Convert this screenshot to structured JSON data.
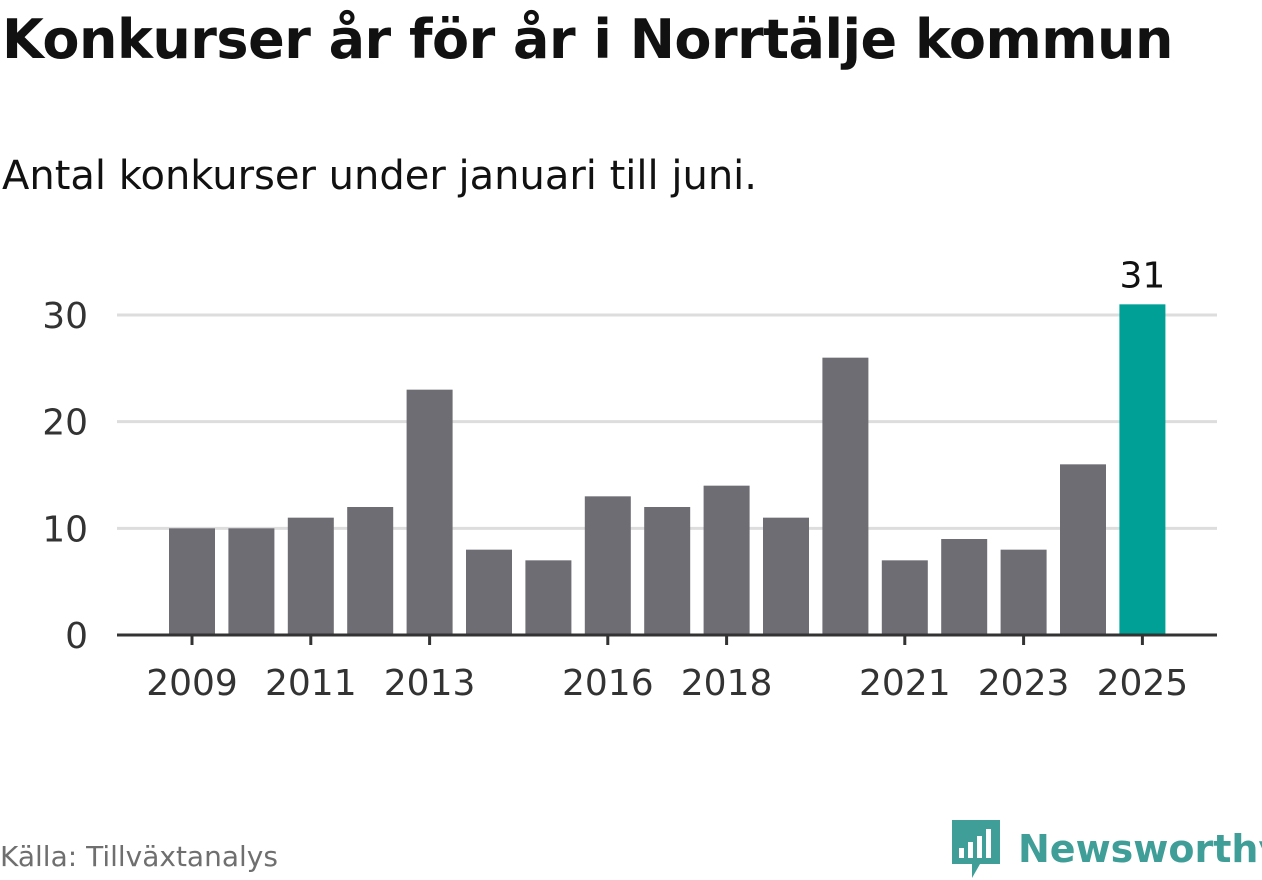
{
  "title": "Konkurser år för år i Norrtälje kommun",
  "subtitle": "Antal konkurser under januari till juni.",
  "source": "Källa: Tillväxtanalys",
  "brand": {
    "name": "Newsworthy",
    "icon": "newsworthy-logo-icon"
  },
  "colors": {
    "bar": "#6e6d73",
    "highlight": "#00a096",
    "grid": "#dddddd",
    "axis": "#333333",
    "brand": "#3f9e98"
  },
  "chart_data": {
    "type": "bar",
    "categories": [
      "2009",
      "2010",
      "2011",
      "2012",
      "2013",
      "2014",
      "2015",
      "2016",
      "2017",
      "2018",
      "2019",
      "2020",
      "2021",
      "2022",
      "2023",
      "2024",
      "2025"
    ],
    "values": [
      10,
      10,
      11,
      12,
      23,
      8,
      7,
      13,
      12,
      14,
      11,
      26,
      7,
      9,
      8,
      16,
      31
    ],
    "x_tick_labels": [
      "2009",
      "2011",
      "2013",
      "2016",
      "2018",
      "2021",
      "2023",
      "2025"
    ],
    "y_ticks": [
      0,
      10,
      20,
      30
    ],
    "ylim": [
      0,
      30
    ],
    "highlight_category": "2025",
    "data_labels": [
      {
        "category": "2025",
        "label": "31"
      }
    ],
    "grid": true,
    "xlabel": "",
    "ylabel": ""
  }
}
